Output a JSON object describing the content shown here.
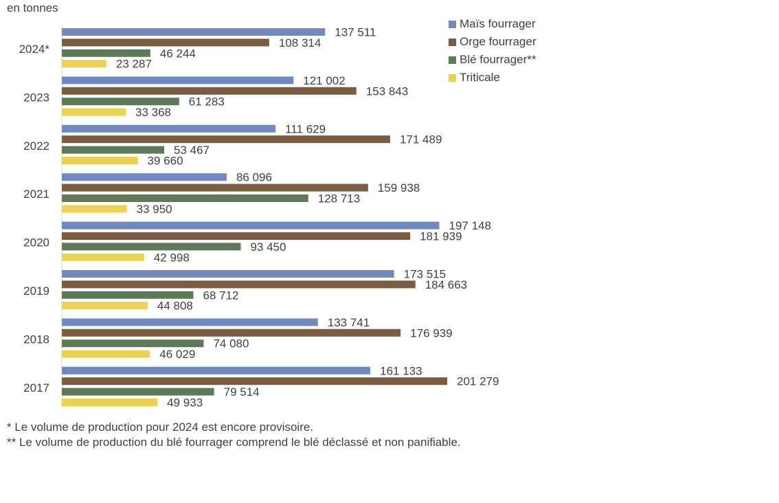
{
  "chart_data": {
    "type": "bar",
    "orientation": "horizontal",
    "unit_label": "en tonnes",
    "categories": [
      "2024*",
      "2023",
      "2022",
      "2021",
      "2020",
      "2019",
      "2018",
      "2017"
    ],
    "series": [
      {
        "name": "Maïs fourrager",
        "color": "#7189C1",
        "values": [
          137511,
          121002,
          111629,
          86096,
          197148,
          173515,
          133741,
          161133
        ],
        "labels": [
          "137 511",
          "121 002",
          "111 629",
          "86 096",
          "197 148",
          "173 515",
          "133 741",
          "161 133"
        ]
      },
      {
        "name": "Orge fourrager",
        "color": "#7B5C40",
        "values": [
          108314,
          153843,
          171489,
          159938,
          181939,
          184663,
          176939,
          201279
        ],
        "labels": [
          "108 314",
          "153 843",
          "171 489",
          "159 938",
          "181 939",
          "184 663",
          "176 939",
          "201 279"
        ]
      },
      {
        "name": "Blé fourrager**",
        "color": "#5E7A58",
        "values": [
          46244,
          61283,
          53467,
          128713,
          93450,
          68712,
          74080,
          79514
        ],
        "labels": [
          "46 244",
          "61 283",
          "53 467",
          "128 713",
          "93 450",
          "68 712",
          "74 080",
          "79 514"
        ]
      },
      {
        "name": "Triticale",
        "color": "#EDD152",
        "values": [
          23287,
          33368,
          39660,
          33950,
          42998,
          44808,
          46029,
          49933
        ],
        "labels": [
          "23 287",
          "33 368",
          "39 660",
          "33 950",
          "42 998",
          "44 808",
          "46 029",
          "49 933"
        ]
      }
    ],
    "xlim": [
      0,
      230000
    ],
    "legend_position": "top-right"
  },
  "notes": {
    "provisional": "* Le volume de production pour 2024 est encore provisoire.",
    "wheat": "** Le volume de production du blé fourrager comprend le blé déclassé et non panifiable."
  }
}
